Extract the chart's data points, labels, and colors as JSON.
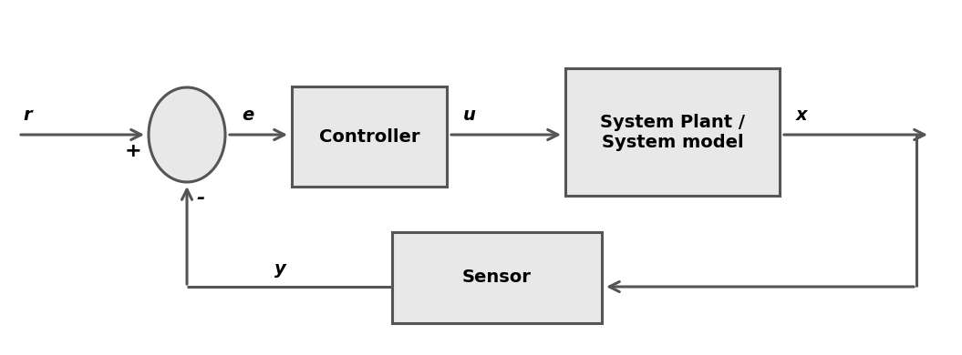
{
  "background_color": "#ffffff",
  "line_color": "#555555",
  "box_fill_color": "#e8e8e8",
  "box_edge_color": "#555555",
  "circle_fill_color": "#e8e8e8",
  "circle_edge_color": "#555555",
  "text_color": "#000000",
  "line_width": 2.2,
  "controller_label": "Controller",
  "plant_label": "System Plant /\nSystem model",
  "sensor_label": "Sensor",
  "label_r": "r",
  "label_e": "e",
  "label_u": "u",
  "label_x": "x",
  "label_y": "y",
  "label_plus": "+",
  "label_minus": "-",
  "font_size_box": 14,
  "font_size_signal": 14,
  "figw": 10.55,
  "figh": 3.9
}
